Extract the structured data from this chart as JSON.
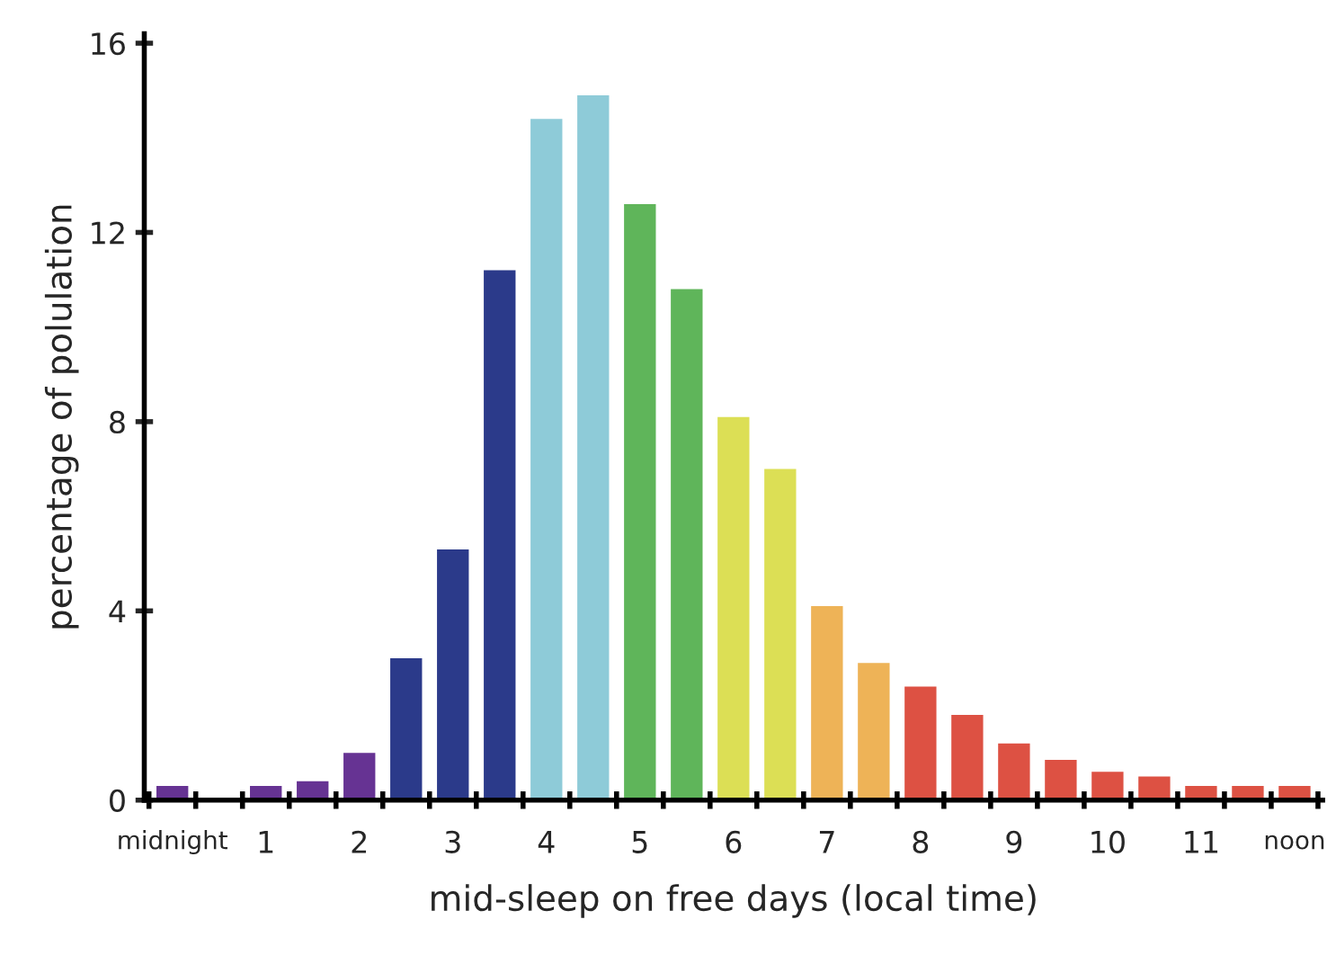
{
  "chart_data": {
    "type": "bar",
    "xlabel": "mid-sleep on free days (local time)",
    "ylabel": "percentage of polulation",
    "categories": [
      "midnight",
      null,
      "1",
      null,
      "2",
      null,
      "3",
      null,
      "4",
      null,
      "5",
      null,
      "6",
      null,
      "7",
      null,
      "8",
      null,
      "9",
      null,
      "10",
      null,
      "11",
      null,
      "noon"
    ],
    "values": [
      0.3,
      0,
      0.3,
      0.4,
      1.0,
      3.0,
      5.3,
      11.2,
      14.4,
      14.9,
      12.6,
      10.8,
      8.1,
      7.0,
      4.1,
      2.9,
      2.4,
      1.8,
      1.2,
      0.85,
      0.6,
      0.5,
      0.3,
      0.3,
      0.3
    ],
    "colors": [
      "#663393",
      "#663393",
      "#663393",
      "#663393",
      "#663393",
      "#2b3a8a",
      "#2b3a8a",
      "#2b3a8a",
      "#8ecbd8",
      "#8ecbd8",
      "#5fb55a",
      "#5fb55a",
      "#dcdf55",
      "#dcdf55",
      "#eeb357",
      "#eeb357",
      "#dd5143",
      "#dd5143",
      "#dd5143",
      "#dd5143",
      "#dd5143",
      "#dd5143",
      "#dd5143",
      "#dd5143",
      "#dd5143"
    ],
    "ylim": [
      0,
      16.2
    ],
    "yticks": [
      0,
      4,
      8,
      12,
      16
    ],
    "grid": false,
    "legend": false
  }
}
